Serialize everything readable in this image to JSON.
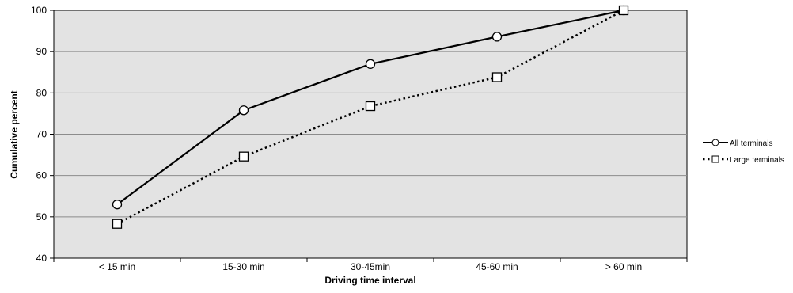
{
  "chart_data": {
    "type": "line",
    "title": "",
    "xlabel": "Driving time interval",
    "ylabel": "Cumulative percent",
    "categories": [
      "< 15 min",
      "15-30 min",
      "30-45min",
      "45-60 min",
      "> 60 min"
    ],
    "ylim": [
      40,
      100
    ],
    "yticks": [
      40,
      50,
      60,
      70,
      80,
      90,
      100
    ],
    "grid": true,
    "legend": "right",
    "colors": {
      "plot_background": "#e3e3e3",
      "gridline": "#8c8c8c",
      "series": "#000000",
      "marker_fill": "#ffffff"
    },
    "series": [
      {
        "name": "All terminals",
        "style": "solid",
        "marker": "circle",
        "values": [
          53,
          75.8,
          87,
          93.6,
          100
        ]
      },
      {
        "name": "Large terminals",
        "style": "dotted",
        "marker": "square",
        "values": [
          48.3,
          64.6,
          76.8,
          83.8,
          100
        ]
      }
    ]
  }
}
